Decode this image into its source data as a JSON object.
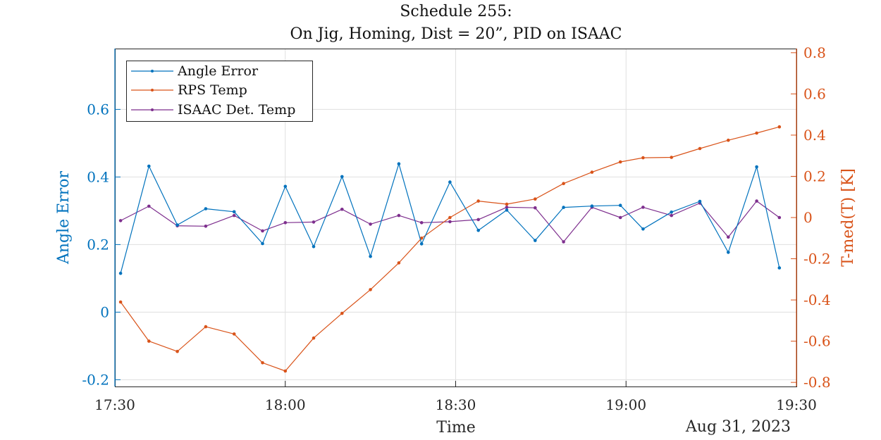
{
  "chart_data": {
    "type": "line",
    "title_line1": "Schedule 255:",
    "title_line2": "On Jig, Homing, Dist = 20”, PID on ISAAC",
    "xlabel": "Time",
    "x_secondary_label": "Aug 31, 2023",
    "ylabel_left": "Angle Error",
    "ylabel_right": "T-med(T) [K]",
    "ylim_left": [
      -0.22,
      0.78
    ],
    "ylim_right": [
      -0.82,
      0.82
    ],
    "xlim": [
      "17:30",
      "19:30"
    ],
    "x_ticks": [
      "17:30",
      "18:00",
      "18:30",
      "19:00",
      "19:30"
    ],
    "y_ticks_left": [
      "-0.2",
      "0",
      "0.2",
      "0.4",
      "0.6"
    ],
    "y_tick_values_left": [
      -0.2,
      0,
      0.2,
      0.4,
      0.6
    ],
    "y_ticks_right": [
      "-0.8",
      "-0.6",
      "-0.4",
      "-0.2",
      "0",
      "0.2",
      "0.4",
      "0.6",
      "0.8"
    ],
    "y_tick_values_right": [
      -0.8,
      -0.6,
      -0.4,
      -0.2,
      0,
      0.2,
      0.4,
      0.6,
      0.8
    ],
    "grid": true,
    "legend_position": "top-left",
    "colors": {
      "left_axis": "#0072BD",
      "right_axis": "#D95319",
      "isaac": "#7E2F8E"
    },
    "x": [
      "17:31",
      "17:36",
      "17:41",
      "17:46",
      "17:51",
      "17:56",
      "18:00",
      "18:05",
      "18:10",
      "18:15",
      "18:20",
      "18:24",
      "18:29",
      "18:34",
      "18:39",
      "18:44",
      "18:49",
      "18:54",
      "18:59",
      "19:03",
      "19:08",
      "19:13",
      "19:18",
      "19:23",
      "19:27"
    ],
    "series": [
      {
        "name": "Angle Error",
        "axis": "left",
        "values": [
          0.115,
          0.432,
          0.258,
          0.306,
          0.297,
          0.203,
          0.372,
          0.194,
          0.401,
          0.165,
          0.439,
          0.202,
          0.385,
          0.242,
          0.302,
          0.212,
          0.31,
          0.314,
          0.316,
          0.246,
          0.296,
          0.328,
          0.177,
          0.43,
          0.131
        ]
      },
      {
        "name": "RPS Temp",
        "axis": "right",
        "values": [
          -0.41,
          -0.6,
          -0.65,
          -0.53,
          -0.565,
          -0.705,
          -0.745,
          -0.585,
          -0.465,
          -0.35,
          -0.22,
          -0.1,
          0,
          0.08,
          0.065,
          0.09,
          0.165,
          0.22,
          0.27,
          0.29,
          0.292,
          0.335,
          0.375,
          0.41,
          0.44
        ]
      },
      {
        "name": "ISAAC Det. Temp",
        "axis": "right",
        "values": [
          -0.015,
          0.055,
          -0.04,
          -0.042,
          0.01,
          -0.065,
          -0.025,
          -0.022,
          0.04,
          -0.032,
          0.01,
          -0.025,
          -0.02,
          -0.01,
          0.05,
          0.047,
          -0.118,
          0.05,
          0.0,
          0.05,
          0.01,
          0.07,
          -0.095,
          0.08,
          0.0
        ]
      }
    ]
  }
}
